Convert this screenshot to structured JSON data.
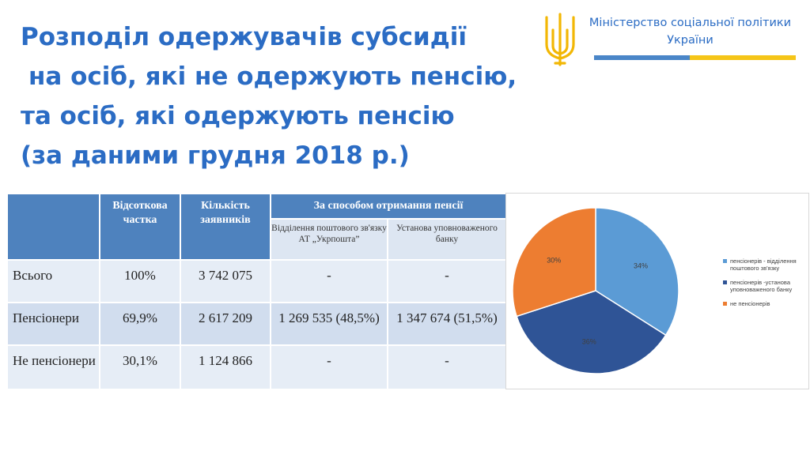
{
  "title": {
    "line1": "Розподіл одержувачів субсидії",
    "line2": "на осіб, які не одержують пенсію,",
    "line3": "та осіб, які одержують пенсію",
    "line4": "(за даними грудня 2018 р.)"
  },
  "ministry": {
    "line1": "Міністерство соціальної політики",
    "line2": "України"
  },
  "colors": {
    "title": "#2b6cc4",
    "table_header": "#4e82be",
    "slice_light_blue": "#5b9bd5",
    "slice_dark_blue": "#2f5496",
    "slice_orange": "#ed7d31",
    "stripe_blue": "#4a86c8",
    "stripe_yellow": "#f5c518"
  },
  "table": {
    "headers": {
      "share": "Відсоткова частка",
      "count": "Кількість заявників",
      "method": "За способом отримання  пенсії",
      "post": "Відділення поштового зв'язку АТ „Укрпошта”",
      "bank": "Установа уповноваженого банку"
    },
    "rows": [
      {
        "name": "Всього",
        "share": "100%",
        "count": "3 742 075",
        "post": "-",
        "bank": "-"
      },
      {
        "name": "Пенсіонери",
        "share": "69,9%",
        "count": "2 617 209",
        "post": "1 269 535 (48,5%)",
        "bank": "1 347 674 (51,5%)"
      },
      {
        "name": "Не пенсіонери",
        "share": "30,1%",
        "count": "1 124 866",
        "post": "-",
        "bank": "-"
      }
    ]
  },
  "chart_data": {
    "type": "pie",
    "slices": [
      {
        "label": "пенсіонерів  - відділення поштового зв'язку",
        "value": 34,
        "display": "34%",
        "color": "#5b9bd5"
      },
      {
        "label": "пенсіонерів  -установа уповноваженого банку",
        "value": 36,
        "display": "36%",
        "color": "#2f5496"
      },
      {
        "label": "не пенсіонерів",
        "value": 30,
        "display": "30%",
        "color": "#ed7d31"
      }
    ],
    "legend_position": "right",
    "start": "12 o'clock, clockwise"
  }
}
